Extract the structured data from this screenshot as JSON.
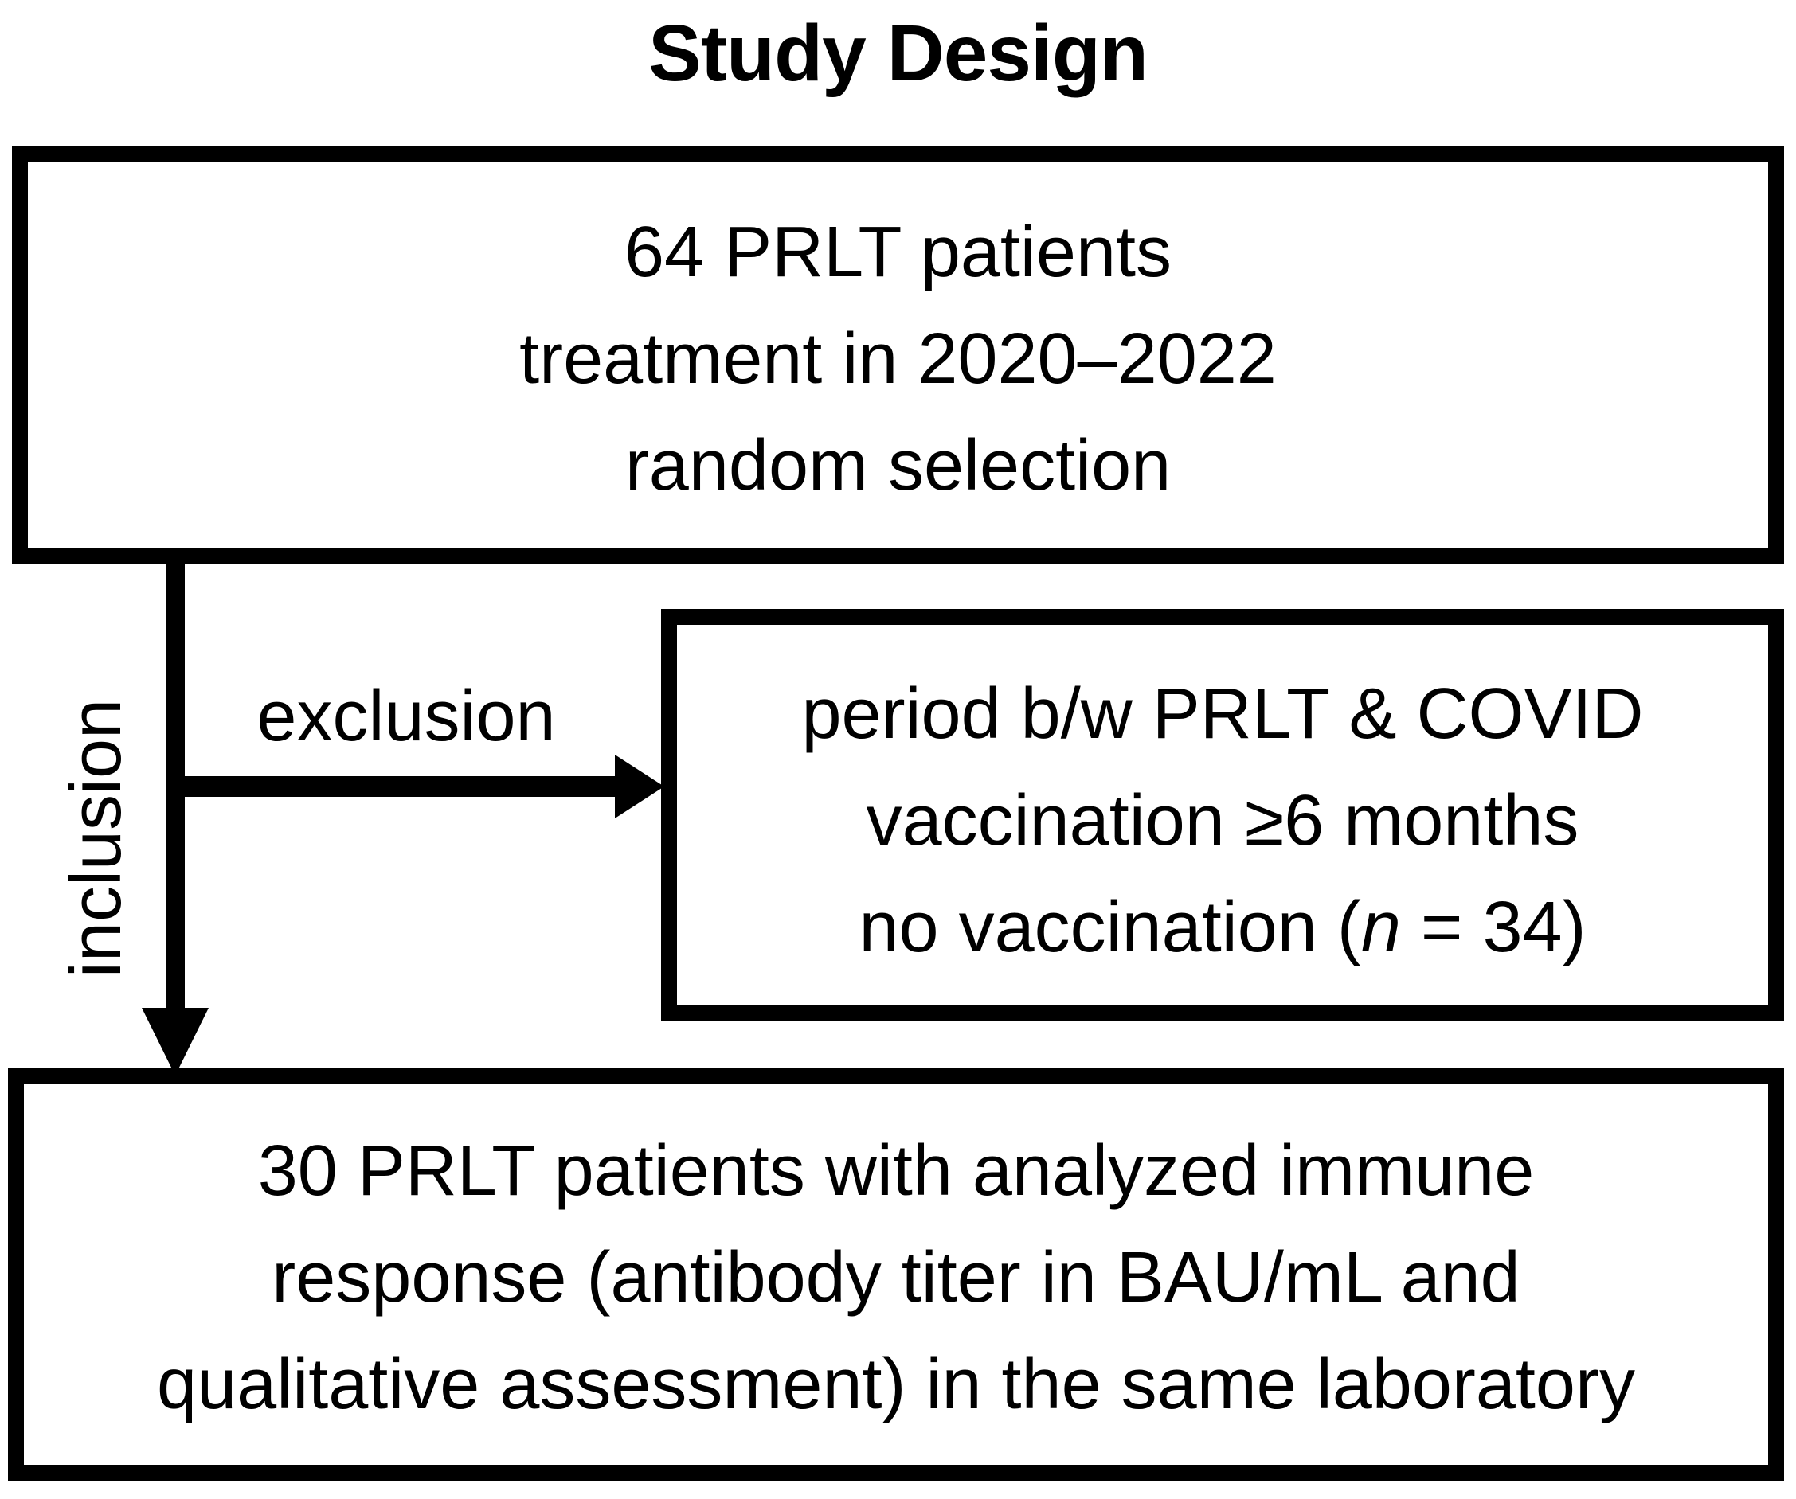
{
  "title": "Study Design",
  "colors": {
    "ink": "#000000",
    "background": "#ffffff"
  },
  "top_box": {
    "lines": [
      "64 PRLT patients",
      "treatment in 2020–2022",
      "random selection"
    ]
  },
  "arrows": {
    "inclusion_label": "inclusion",
    "exclusion_label": "exclusion"
  },
  "exclusion_box": {
    "line1": "period b/w PRLT & COVID",
    "line2": "vaccination ≥6 months",
    "line3_prefix": "no vaccination (",
    "line3_italic": "n",
    "line3_suffix": " = 34)"
  },
  "bottom_box": {
    "lines": [
      "30 PRLT patients with analyzed immune",
      "response (antibody titer in BAU/mL and",
      "qualitative assessment) in the same laboratory"
    ]
  }
}
